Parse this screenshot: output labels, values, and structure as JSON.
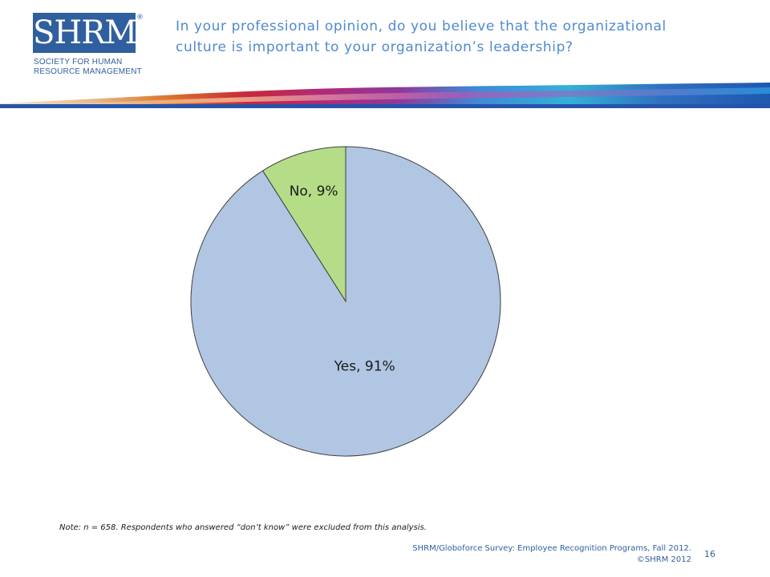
{
  "logo": {
    "text": "SHRM",
    "registered": "®",
    "line1": "SOCIETY FOR HUMAN",
    "line2": "RESOURCE MANAGEMENT"
  },
  "title": "In your professional opinion, do you believe that the organizational culture is important to your organization’s leadership?",
  "note": "Note: n = 658. Respondents who answered “don’t know” were excluded from this analysis.",
  "source": {
    "line1": "SHRM/Globoforce Survey: Employee Recognition Programs, Fall 2012.",
    "line2": "©SHRM 2012"
  },
  "page_number": "16",
  "colors": {
    "brand": "#2f5f9e",
    "title": "#4f8ad0",
    "yes": "#b0c6e2",
    "no": "#b5dc87",
    "outline": "#404040"
  },
  "chart_data": {
    "type": "pie",
    "title": "",
    "slices": [
      {
        "label": "Yes",
        "value": 91,
        "data_label": "Yes, 91%",
        "color": "#b0c6e2"
      },
      {
        "label": "No",
        "value": 9,
        "data_label": "No, 9%",
        "color": "#b5dc87"
      }
    ],
    "start_angle_deg": 0,
    "direction": "clockwise",
    "legend": "none"
  }
}
